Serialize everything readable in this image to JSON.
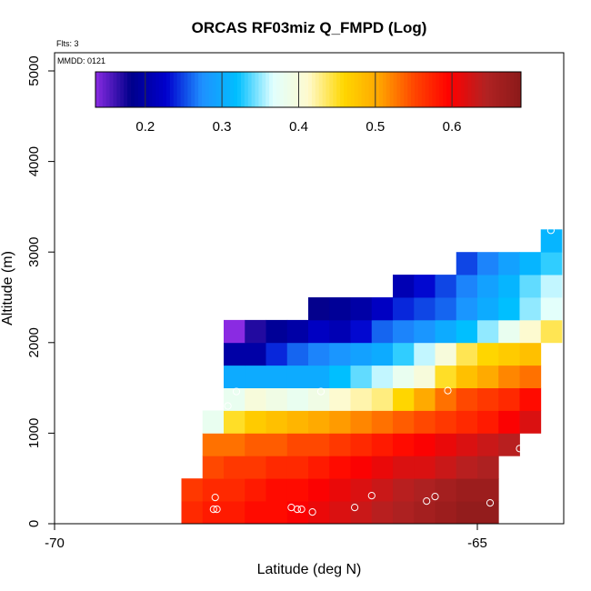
{
  "chart_data": {
    "type": "heatmap",
    "title": "ORCAS RF03miz Q_FMPD (Log)",
    "xlabel": "Latitude (deg N)",
    "ylabel": "Altitude (m)",
    "annotations": {
      "flights": "Flts: 3",
      "date": "MMDD: 0121"
    },
    "xlim": [
      -70,
      -64
    ],
    "ylim": [
      0,
      5200
    ],
    "x_ticks": [
      -70,
      -65
    ],
    "y_ticks": [
      0,
      1000,
      2000,
      3000,
      4000,
      5000
    ],
    "colorbar": {
      "range": [
        0.135,
        0.69
      ],
      "ticks": [
        0.2,
        0.3,
        0.4,
        0.5,
        0.6
      ],
      "colors": [
        "#8a2be2",
        "#00008b",
        "#0000cd",
        "#1e90ff",
        "#00bfff",
        "#e0ffff",
        "#fffacd",
        "#ffd700",
        "#ffa500",
        "#ff4500",
        "#ff0000",
        "#b22222",
        "#8b1a1a"
      ]
    },
    "cell_size": {
      "lat": 0.25,
      "alt": 250
    },
    "grid": {
      "lat_start": -68.5,
      "alt_start": 0,
      "rows": [
        {
          "alt": 0,
          "start": 0,
          "values": [
            0.57,
            0.58,
            0.58,
            0.59,
            0.59,
            0.6,
            0.61,
            0.62,
            0.63,
            0.64,
            0.65,
            0.66,
            0.67,
            0.68,
            0.68
          ]
        },
        {
          "alt": 250,
          "start": 0,
          "values": [
            0.56,
            0.57,
            0.57,
            0.58,
            0.59,
            0.59,
            0.6,
            0.61,
            0.62,
            0.63,
            0.64,
            0.65,
            0.66,
            0.67,
            0.67
          ]
        },
        {
          "alt": 500,
          "start": 1,
          "values": [
            0.55,
            0.56,
            0.56,
            0.57,
            0.57,
            0.58,
            0.59,
            0.6,
            0.61,
            0.62,
            0.62,
            0.63,
            0.64,
            0.65
          ]
        },
        {
          "alt": 750,
          "start": 1,
          "values": [
            0.53,
            0.53,
            0.54,
            0.54,
            0.55,
            0.55,
            0.56,
            0.57,
            0.58,
            0.59,
            0.6,
            0.61,
            0.62,
            0.63,
            0.64
          ]
        },
        {
          "alt": 1000,
          "start": 1,
          "values": [
            0.38,
            0.45,
            0.47,
            0.48,
            0.49,
            0.5,
            0.51,
            0.52,
            0.53,
            0.54,
            0.55,
            0.56,
            0.57,
            0.58,
            0.6,
            0.62
          ]
        },
        {
          "alt": 1250,
          "start": 2,
          "values": [
            0.38,
            0.4,
            0.39,
            0.38,
            0.39,
            0.41,
            0.42,
            0.43,
            0.46,
            0.5,
            0.53,
            0.55,
            0.56,
            0.57,
            0.59
          ]
        },
        {
          "alt": 1500,
          "start": 2,
          "values": [
            0.3,
            0.3,
            0.3,
            0.3,
            0.3,
            0.32,
            0.34,
            0.36,
            0.38,
            0.4,
            0.45,
            0.48,
            0.5,
            0.52,
            0.53
          ]
        },
        {
          "alt": 1750,
          "start": 2,
          "values": [
            0.2,
            0.2,
            0.24,
            0.26,
            0.27,
            0.28,
            0.29,
            0.3,
            0.33,
            0.36,
            0.4,
            0.44,
            0.46,
            0.47,
            0.48
          ]
        },
        {
          "alt": 2000,
          "start": 2,
          "values": [
            0.135,
            0.17,
            0.19,
            0.2,
            0.22,
            0.21,
            0.23,
            0.26,
            0.27,
            0.28,
            0.3,
            0.32,
            0.35,
            0.38,
            0.41,
            0.44
          ]
        },
        {
          "alt": 2250,
          "start": 6,
          "values": [
            0.18,
            0.19,
            0.2,
            0.22,
            0.24,
            0.25,
            0.26,
            0.28,
            0.3,
            0.32,
            0.35,
            0.37
          ]
        },
        {
          "alt": 2500,
          "start": 10,
          "values": [
            0.21,
            0.23,
            0.25,
            0.27,
            0.29,
            0.31,
            0.34,
            0.36
          ]
        },
        {
          "alt": 2750,
          "start": 13,
          "values": [
            0.25,
            0.27,
            0.29,
            0.31,
            0.33
          ]
        },
        {
          "alt": 3000,
          "start": 17,
          "values": [
            0.31
          ]
        }
      ]
    },
    "points": [
      {
        "lat": -68.1,
        "alt": 2230
      },
      {
        "lat": -68.1,
        "alt": 290
      },
      {
        "lat": -68.12,
        "alt": 160
      },
      {
        "lat": -68.08,
        "alt": 160
      },
      {
        "lat": -67.95,
        "alt": 1300
      },
      {
        "lat": -67.85,
        "alt": 1460
      },
      {
        "lat": -67.2,
        "alt": 180
      },
      {
        "lat": -67.13,
        "alt": 160
      },
      {
        "lat": -67.08,
        "alt": 160
      },
      {
        "lat": -66.95,
        "alt": 130
      },
      {
        "lat": -66.85,
        "alt": 1460
      },
      {
        "lat": -66.45,
        "alt": 180
      },
      {
        "lat": -66.25,
        "alt": 310
      },
      {
        "lat": -65.6,
        "alt": 250
      },
      {
        "lat": -65.5,
        "alt": 300
      },
      {
        "lat": -65.35,
        "alt": 1470
      },
      {
        "lat": -64.85,
        "alt": 230
      },
      {
        "lat": -64.5,
        "alt": 830
      },
      {
        "lat": -64.13,
        "alt": 3240
      }
    ]
  }
}
